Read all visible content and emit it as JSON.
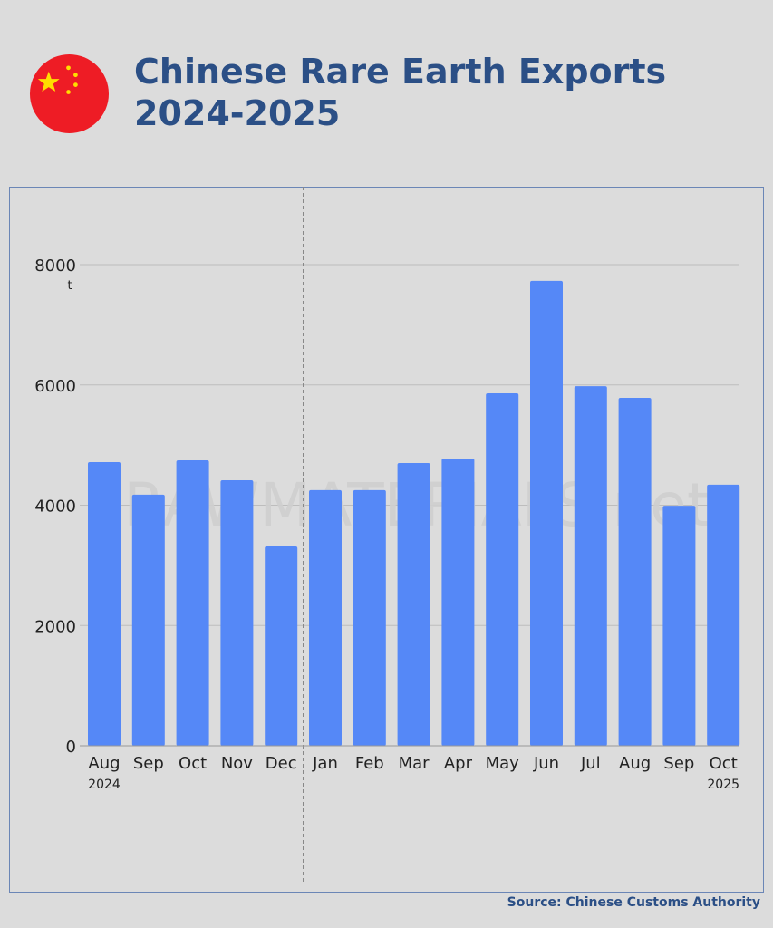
{
  "title_line1": "Chinese Rare Earth Exports",
  "title_line2": "2024-2025",
  "flag_icon": "china-flag-icon",
  "source": "Source: Chinese Customs Authority",
  "watermark": "RAWMATERIALS.net",
  "colors": {
    "bar": "#5588f7",
    "title": "#2b4f86",
    "background": "#dcdcdc",
    "flag_red": "#ee1c25",
    "flag_star": "#ffde00"
  },
  "chart_data": {
    "type": "bar",
    "categories": [
      "Aug",
      "Sep",
      "Oct",
      "Nov",
      "Dec",
      "Jan",
      "Feb",
      "Mar",
      "Apr",
      "May",
      "Jun",
      "Jul",
      "Aug",
      "Sep",
      "Oct"
    ],
    "year_labels": [
      {
        "index": 0,
        "label": "2024"
      },
      {
        "index": 14,
        "label": "2025"
      }
    ],
    "values": [
      4715,
      4175,
      4745,
      4415,
      3315,
      4250,
      4250,
      4700,
      4775,
      5860,
      7730,
      5980,
      5785,
      3990,
      4340
    ],
    "unit": "t",
    "yticks": [
      0,
      2000,
      4000,
      6000,
      8000
    ],
    "ylim": [
      0,
      9000
    ],
    "grid": true,
    "year_divider_between": [
      "Dec",
      "Jan"
    ]
  }
}
